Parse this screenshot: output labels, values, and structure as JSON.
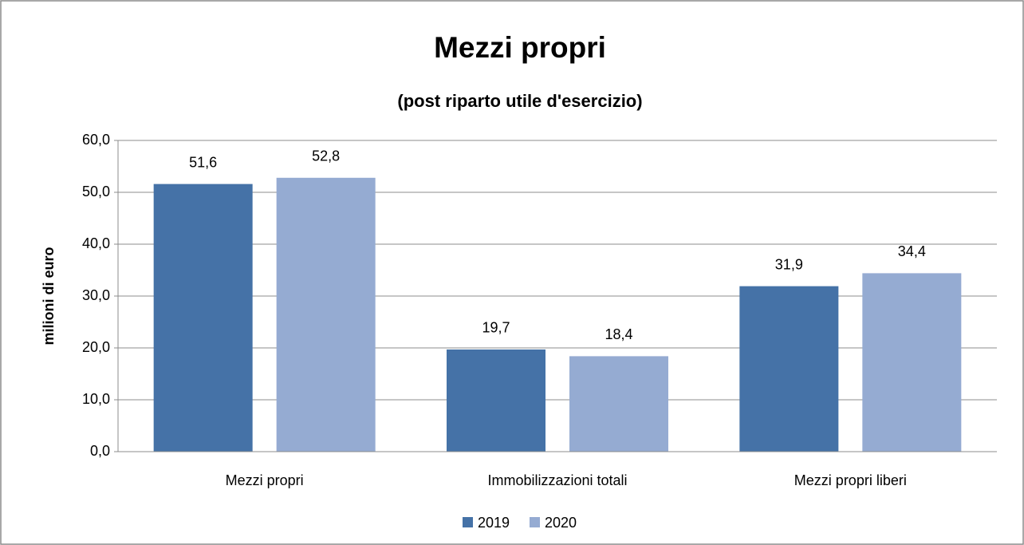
{
  "chart_data": {
    "type": "bar",
    "title": "Mezzi propri",
    "subtitle": "(post riparto utile d'esercizio)",
    "y_label": "milioni di euro",
    "categories": [
      "Mezzi propri",
      "Immobilizzazioni totali",
      "Mezzi propri liberi"
    ],
    "series": [
      {
        "name": "2019",
        "color": "#4572a7",
        "values": [
          51.6,
          19.7,
          31.9
        ],
        "value_labels": [
          "51,6",
          "19,7",
          "31,9"
        ]
      },
      {
        "name": "2020",
        "color": "#95abd2",
        "values": [
          52.8,
          18.4,
          34.4
        ],
        "value_labels": [
          "52,8",
          "18,4",
          "34,4"
        ]
      }
    ],
    "ylim": [
      0,
      60
    ],
    "yticks": [
      {
        "value": 0,
        "label": "0,0"
      },
      {
        "value": 10,
        "label": "10,0"
      },
      {
        "value": 20,
        "label": "20,0"
      },
      {
        "value": 30,
        "label": "30,0"
      },
      {
        "value": 40,
        "label": "40,0"
      },
      {
        "value": 50,
        "label": "50,0"
      },
      {
        "value": 60,
        "label": "60,0"
      }
    ],
    "grid": true,
    "legend": "bottom"
  }
}
